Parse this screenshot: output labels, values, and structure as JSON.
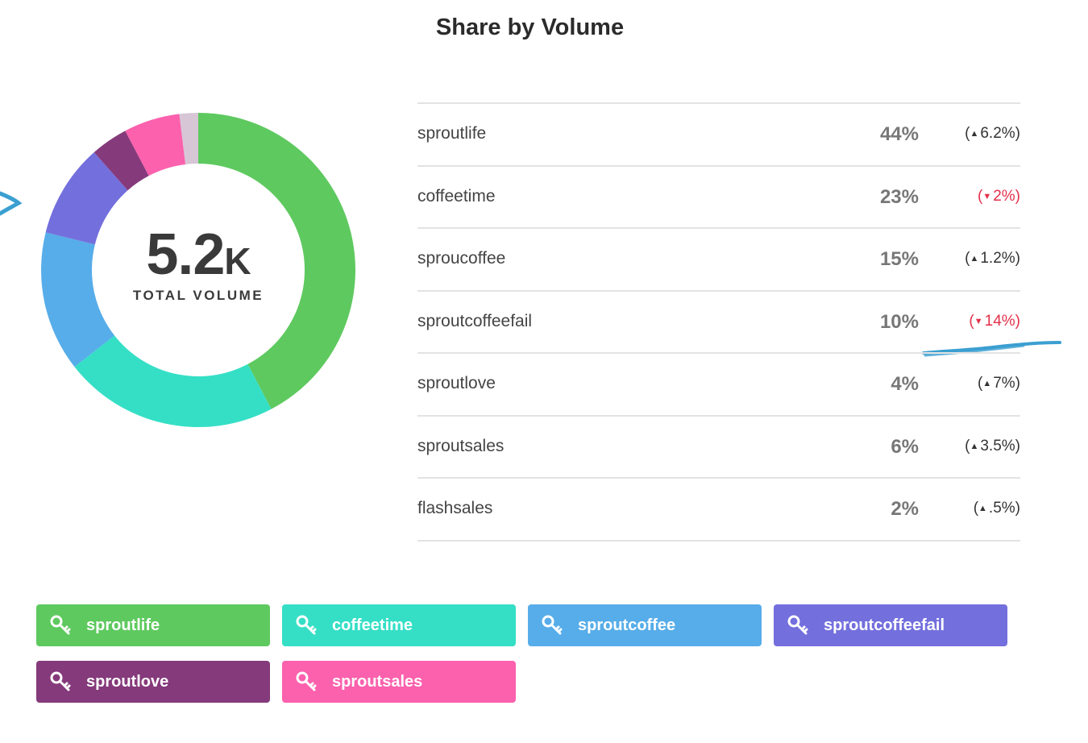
{
  "title": "Share by Volume",
  "summary": {
    "value": "5.2",
    "unit": "K",
    "label": "TOTAL VOLUME"
  },
  "chart_data": {
    "type": "pie",
    "title": "Share by Volume",
    "slices": [
      {
        "name": "sproutlife",
        "value": 44,
        "color": "#5ec95f"
      },
      {
        "name": "coffeetime",
        "value": 23,
        "color": "#35dfc6"
      },
      {
        "name": "sproucoffee",
        "value": 15,
        "color": "#57ade9"
      },
      {
        "name": "sproutcoffeefail",
        "value": 10,
        "color": "#736fdd"
      },
      {
        "name": "sproutlove",
        "value": 4,
        "color": "#853a7b"
      },
      {
        "name": "sproutsales",
        "value": 6,
        "color": "#fb61ad"
      },
      {
        "name": "flashsales",
        "value": 2,
        "color": "#d7c6d6"
      }
    ]
  },
  "rows": [
    {
      "name": "sproutlife",
      "pct": "44%",
      "change": "6.2%",
      "direction": "up"
    },
    {
      "name": "coffeetime",
      "pct": "23%",
      "change": "2%",
      "direction": "down"
    },
    {
      "name": "sproucoffee",
      "pct": "15%",
      "change": "1.2%",
      "direction": "up"
    },
    {
      "name": "sproutcoffeefail",
      "pct": "10%",
      "change": "14%",
      "direction": "down"
    },
    {
      "name": "sproutlove",
      "pct": "4%",
      "change": "7%",
      "direction": "up"
    },
    {
      "name": "sproutsales",
      "pct": "6%",
      "change": "3.5%",
      "direction": "up"
    },
    {
      "name": "flashsales",
      "pct": "2%",
      "change": ".5%",
      "direction": "up"
    }
  ],
  "tags": [
    {
      "label": "sproutlife",
      "color": "#5ec95f",
      "icon": "key-icon"
    },
    {
      "label": "coffeetime",
      "color": "#35dfc6",
      "icon": "key-icon"
    },
    {
      "label": "sproutcoffee",
      "color": "#57ade9",
      "icon": "key-icon"
    },
    {
      "label": "sproutcoffeefail",
      "color": "#736fdd",
      "icon": "key-icon"
    },
    {
      "label": "sproutlove",
      "color": "#853a7b",
      "icon": "key-icon"
    },
    {
      "label": "sproutsales",
      "color": "#fb61ad",
      "icon": "key-icon"
    }
  ],
  "annotation_color": "#3b9fd1"
}
